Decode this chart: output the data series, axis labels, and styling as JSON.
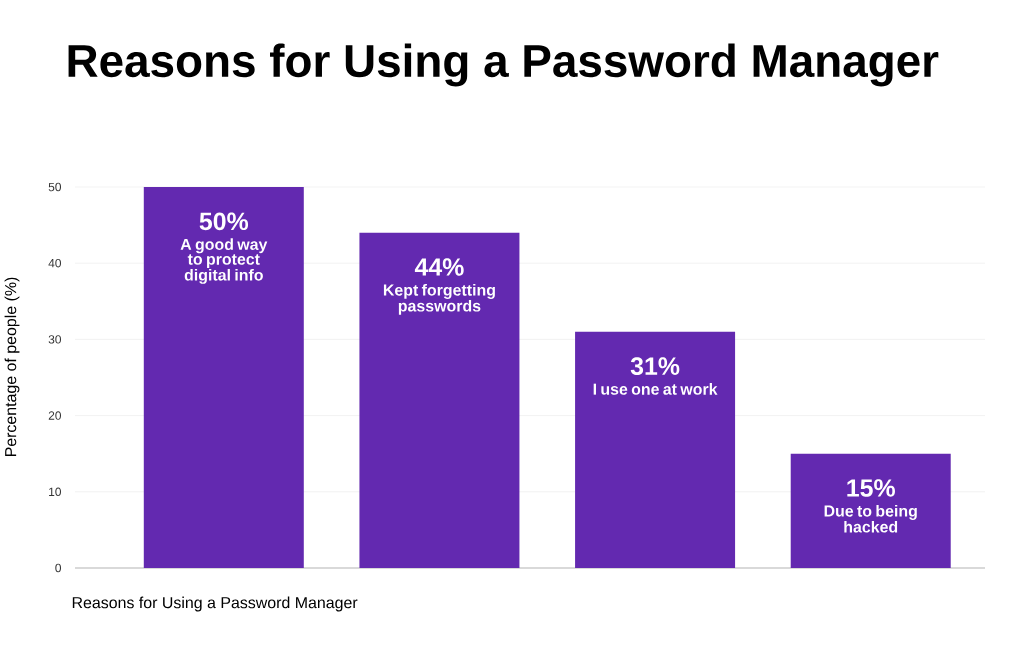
{
  "chart_data": {
    "type": "bar",
    "title": "Reasons for Using a Password Manager",
    "xlabel": "Reasons for Using a Password Manager",
    "ylabel": "Percentage of people (%)",
    "categories": [
      "A good way to protect digital info",
      "Kept forgetting passwords",
      "I use one at work",
      "Due to being hacked"
    ],
    "values": [
      50,
      44,
      31,
      15
    ],
    "value_labels": [
      "50%",
      "44%",
      "31%",
      "15%"
    ],
    "color": "#6329b0",
    "ylim": [
      0,
      50
    ],
    "yticks": [
      0,
      10,
      20,
      30,
      40,
      50
    ],
    "grid": "y"
  }
}
